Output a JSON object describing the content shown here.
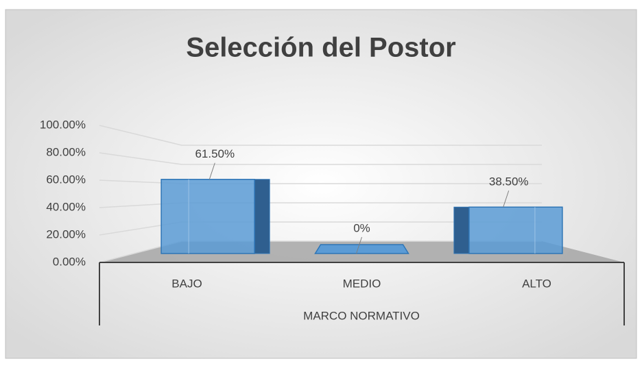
{
  "chart_data": {
    "type": "bar3d",
    "title": "Selección del Postor",
    "x_label": "MARCO NORMATIVO",
    "categories": [
      "BAJO",
      "MEDIO",
      "ALTO"
    ],
    "values": [
      61.5,
      0,
      38.5
    ],
    "value_labels": [
      "61.50%",
      "0%",
      "38.50%"
    ],
    "color": "#5b9bd5",
    "ylim": [
      0,
      100
    ],
    "yticks": [
      {
        "value": 0,
        "label": "0.00%"
      },
      {
        "value": 20,
        "label": "20.00%"
      },
      {
        "value": 40,
        "label": "40.00%"
      },
      {
        "value": 60,
        "label": "60.00%"
      },
      {
        "value": 80,
        "label": "80.00%"
      },
      {
        "value": 100,
        "label": "100.00%"
      }
    ],
    "grid": true
  }
}
